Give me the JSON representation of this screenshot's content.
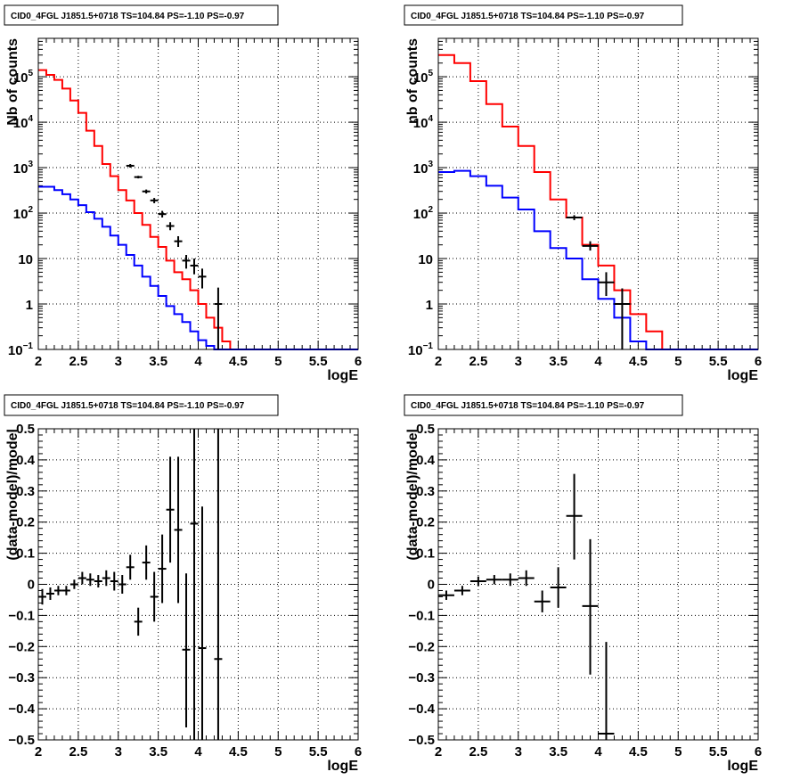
{
  "chart_data": [
    {
      "type": "histogram",
      "panel": "top-left",
      "title": "CID0_4FGL J1851.5+0718 TS=104.84 PS=-1.10 PS=-0.97",
      "xlabel": "logE",
      "ylabel": "Nb of counts",
      "xlim": [
        2,
        6
      ],
      "ylim": [
        0.1,
        700000
      ],
      "yscale": "log",
      "grid": true,
      "xticks": [
        "2",
        "2.5",
        "3",
        "3.5",
        "4",
        "4.5",
        "5",
        "5.5",
        "6"
      ],
      "yticks": [
        {
          "value": 0.1,
          "base": "10",
          "exp": "−1"
        },
        {
          "value": 1,
          "base": "1",
          "exp": ""
        },
        {
          "value": 10,
          "base": "10",
          "exp": ""
        },
        {
          "value": 100,
          "base": "10",
          "exp": "2"
        },
        {
          "value": 1000,
          "base": "10",
          "exp": "3"
        },
        {
          "value": 10000,
          "base": "10",
          "exp": "4"
        },
        {
          "value": 100000,
          "base": "10",
          "exp": "5"
        }
      ],
      "bin_edges": [
        2.0,
        2.1,
        2.2,
        2.3,
        2.4,
        2.5,
        2.6,
        2.7,
        2.8,
        2.9,
        3.0,
        3.1,
        3.2,
        3.3,
        3.4,
        3.5,
        3.6,
        3.7,
        3.8,
        3.9,
        4.0,
        4.1,
        4.2,
        4.3,
        4.4,
        4.5,
        4.6,
        4.7,
        4.8,
        4.9,
        5.0,
        5.1,
        5.2,
        5.3,
        5.4,
        5.5,
        5.6,
        5.7,
        5.8,
        5.9,
        6.0
      ],
      "series": [
        {
          "role": "model_total",
          "color": "#ff0000",
          "values": [
            140000,
            110000,
            85000,
            55000,
            30000,
            16000,
            6500,
            3000,
            1200,
            650,
            320,
            190,
            100,
            55,
            30,
            18,
            9,
            5,
            3.5,
            2,
            1,
            0.5,
            0.3,
            0.15,
            0.1,
            0.1,
            0.1,
            0.1,
            0.1,
            0.1,
            0.1,
            0.1,
            0.1,
            0.1,
            0.1,
            0.1,
            0.1,
            0.1,
            0.1,
            0.1
          ]
        },
        {
          "role": "model_component",
          "color": "#0000ff",
          "values": [
            380,
            380,
            320,
            260,
            200,
            150,
            105,
            75,
            50,
            32,
            20,
            12,
            7,
            4,
            2.5,
            1.5,
            0.9,
            0.6,
            0.4,
            0.25,
            0.16,
            0.12,
            0.1,
            0.1,
            0.1,
            0.1,
            0.1,
            0.1,
            0.1,
            0.1,
            0.1,
            0.1,
            0.1,
            0.1,
            0.1,
            0.1,
            0.1,
            0.1,
            0.1,
            0.1
          ]
        }
      ],
      "points": [
        {
          "x": 3.15,
          "y": 1100,
          "ylo": 1000,
          "yhi": 1200
        },
        {
          "x": 3.25,
          "y": 620,
          "ylo": 580,
          "yhi": 660
        },
        {
          "x": 3.35,
          "y": 300,
          "ylo": 270,
          "yhi": 330
        },
        {
          "x": 3.45,
          "y": 190,
          "ylo": 165,
          "yhi": 215
        },
        {
          "x": 3.55,
          "y": 95,
          "ylo": 80,
          "yhi": 112
        },
        {
          "x": 3.65,
          "y": 52,
          "ylo": 42,
          "yhi": 63
        },
        {
          "x": 3.75,
          "y": 24,
          "ylo": 18,
          "yhi": 31
        },
        {
          "x": 3.85,
          "y": 9,
          "ylo": 6,
          "yhi": 12
        },
        {
          "x": 3.95,
          "y": 7,
          "ylo": 4.5,
          "yhi": 10
        },
        {
          "x": 4.05,
          "y": 4,
          "ylo": 2.2,
          "yhi": 6
        },
        {
          "x": 4.25,
          "y": 1,
          "ylo": 0.1,
          "yhi": 2.3
        }
      ]
    },
    {
      "type": "histogram",
      "panel": "top-right",
      "title": "CID0_4FGL J1851.5+0718 TS=104.84 PS=-1.10 PS=-0.97",
      "xlabel": "logE",
      "ylabel": "nb of counts",
      "xlim": [
        2,
        6
      ],
      "ylim": [
        0.1,
        700000
      ],
      "yscale": "log",
      "grid": true,
      "xticks": [
        "2",
        "2.5",
        "3",
        "3.5",
        "4",
        "4.5",
        "5",
        "5.5",
        "6"
      ],
      "yticks": [
        {
          "value": 0.1,
          "base": "10",
          "exp": "−1"
        },
        {
          "value": 1,
          "base": "1",
          "exp": ""
        },
        {
          "value": 10,
          "base": "10",
          "exp": ""
        },
        {
          "value": 100,
          "base": "10",
          "exp": "2"
        },
        {
          "value": 1000,
          "base": "10",
          "exp": "3"
        },
        {
          "value": 10000,
          "base": "10",
          "exp": "4"
        },
        {
          "value": 100000,
          "base": "10",
          "exp": "5"
        }
      ],
      "bin_edges": [
        2.0,
        2.2,
        2.4,
        2.6,
        2.8,
        3.0,
        3.2,
        3.4,
        3.6,
        3.8,
        4.0,
        4.2,
        4.4,
        4.6,
        4.8,
        5.0,
        5.2,
        5.4,
        5.6,
        5.8,
        6.0
      ],
      "series": [
        {
          "role": "model_total",
          "color": "#ff0000",
          "values": [
            300000,
            200000,
            80000,
            25000,
            8000,
            3000,
            800,
            200,
            80,
            20,
            7,
            2,
            0.6,
            0.25,
            0.1,
            0.1,
            0.1,
            0.1,
            0.1,
            0.1
          ]
        },
        {
          "role": "model_component",
          "color": "#0000ff",
          "values": [
            800,
            850,
            650,
            400,
            220,
            120,
            40,
            17,
            10,
            3.5,
            1.3,
            0.5,
            0.15,
            0.1,
            0.1,
            0.1,
            0.1,
            0.1,
            0.1,
            0.1
          ]
        }
      ],
      "points": [
        {
          "x": 3.7,
          "y": 80,
          "ylo": 70,
          "yhi": 90
        },
        {
          "x": 3.9,
          "y": 19,
          "ylo": 15,
          "yhi": 24
        },
        {
          "x": 4.1,
          "y": 3,
          "ylo": 1.5,
          "yhi": 5
        },
        {
          "x": 4.3,
          "y": 1,
          "ylo": 0.1,
          "yhi": 2.2
        }
      ]
    },
    {
      "type": "scatter",
      "panel": "bottom-left",
      "title": "CID0_4FGL J1851.5+0718 TS=104.84 PS=-1.10 PS=-0.97",
      "xlabel": "logE",
      "ylabel": "(data-model)/model",
      "xlim": [
        2,
        6
      ],
      "ylim": [
        -0.5,
        0.5
      ],
      "grid": true,
      "xticks": [
        "2",
        "2.5",
        "3",
        "3.5",
        "4",
        "4.5",
        "5",
        "5.5",
        "6"
      ],
      "yticks": [
        "−0.5",
        "−0.4",
        "−0.3",
        "−0.2",
        "−0.1",
        "0",
        "0.1",
        "0.2",
        "0.3",
        "0.4",
        "0.5"
      ],
      "points": [
        {
          "x": 2.05,
          "y": -0.04,
          "ylo": -0.065,
          "yhi": -0.015
        },
        {
          "x": 2.15,
          "y": -0.03,
          "ylo": -0.05,
          "yhi": -0.01
        },
        {
          "x": 2.25,
          "y": -0.02,
          "ylo": -0.035,
          "yhi": -0.005
        },
        {
          "x": 2.35,
          "y": -0.02,
          "ylo": -0.035,
          "yhi": -0.005
        },
        {
          "x": 2.45,
          "y": 0.0,
          "ylo": -0.015,
          "yhi": 0.015
        },
        {
          "x": 2.55,
          "y": 0.02,
          "ylo": 0.0,
          "yhi": 0.04
        },
        {
          "x": 2.65,
          "y": 0.015,
          "ylo": -0.005,
          "yhi": 0.035
        },
        {
          "x": 2.75,
          "y": 0.01,
          "ylo": -0.01,
          "yhi": 0.03
        },
        {
          "x": 2.85,
          "y": 0.02,
          "ylo": -0.005,
          "yhi": 0.045
        },
        {
          "x": 2.95,
          "y": 0.01,
          "ylo": -0.02,
          "yhi": 0.04
        },
        {
          "x": 3.05,
          "y": 0.0,
          "ylo": -0.03,
          "yhi": 0.03
        },
        {
          "x": 3.15,
          "y": 0.055,
          "ylo": 0.015,
          "yhi": 0.095
        },
        {
          "x": 3.25,
          "y": -0.12,
          "ylo": -0.165,
          "yhi": -0.075
        },
        {
          "x": 3.35,
          "y": 0.07,
          "ylo": 0.015,
          "yhi": 0.125
        },
        {
          "x": 3.45,
          "y": -0.04,
          "ylo": -0.12,
          "yhi": 0.04
        },
        {
          "x": 3.55,
          "y": 0.05,
          "ylo": -0.06,
          "yhi": 0.16
        },
        {
          "x": 3.65,
          "y": 0.24,
          "ylo": 0.07,
          "yhi": 0.41
        },
        {
          "x": 3.75,
          "y": 0.175,
          "ylo": -0.06,
          "yhi": 0.41
        },
        {
          "x": 3.85,
          "y": -0.21,
          "ylo": -0.46,
          "yhi": 0.035
        },
        {
          "x": 3.95,
          "y": 0.195,
          "ylo": -0.5,
          "yhi": 0.5
        },
        {
          "x": 4.05,
          "y": -0.205,
          "ylo": -0.5,
          "yhi": 0.25
        },
        {
          "x": 4.25,
          "y": -0.24,
          "ylo": -0.5,
          "yhi": 0.5
        }
      ]
    },
    {
      "type": "scatter",
      "panel": "bottom-right",
      "title": "CID0_4FGL J1851.5+0718 TS=104.84 PS=-1.10 PS=-0.97",
      "xlabel": "logE",
      "ylabel": "(data-model)/model",
      "xlim": [
        2,
        6
      ],
      "ylim": [
        -0.5,
        0.5
      ],
      "grid": true,
      "xticks": [
        "2",
        "2.5",
        "3",
        "3.5",
        "4",
        "4.5",
        "5",
        "5.5",
        "6"
      ],
      "yticks": [
        "−0.5",
        "−0.4",
        "−0.3",
        "−0.2",
        "−0.1",
        "0",
        "0.1",
        "0.2",
        "0.3",
        "0.4",
        "0.5"
      ],
      "points": [
        {
          "x": 2.1,
          "y": -0.035,
          "ylo": -0.05,
          "yhi": -0.02
        },
        {
          "x": 2.3,
          "y": -0.02,
          "ylo": -0.035,
          "yhi": -0.005
        },
        {
          "x": 2.5,
          "y": 0.01,
          "ylo": -0.005,
          "yhi": 0.025
        },
        {
          "x": 2.7,
          "y": 0.015,
          "ylo": 0.0,
          "yhi": 0.03
        },
        {
          "x": 2.9,
          "y": 0.015,
          "ylo": -0.005,
          "yhi": 0.035
        },
        {
          "x": 3.1,
          "y": 0.02,
          "ylo": -0.005,
          "yhi": 0.045
        },
        {
          "x": 3.3,
          "y": -0.055,
          "ylo": -0.09,
          "yhi": -0.02
        },
        {
          "x": 3.5,
          "y": -0.01,
          "ylo": -0.075,
          "yhi": 0.055
        },
        {
          "x": 3.7,
          "y": 0.22,
          "ylo": 0.08,
          "yhi": 0.355
        },
        {
          "x": 3.9,
          "y": -0.07,
          "ylo": -0.29,
          "yhi": 0.145
        },
        {
          "x": 4.1,
          "y": -0.48,
          "ylo": -0.5,
          "yhi": -0.185
        }
      ]
    }
  ]
}
